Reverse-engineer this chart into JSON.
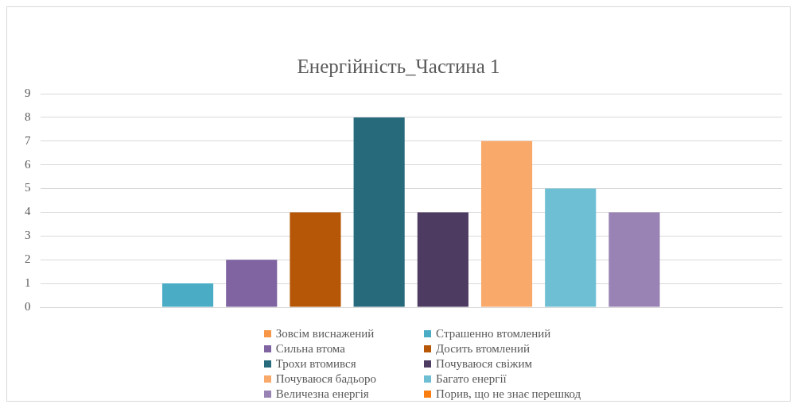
{
  "chart_data": {
    "type": "bar",
    "title": "Енергійність_Частина 1",
    "categories": [
      null
    ],
    "series": [
      {
        "name": "Зовсім виснажений",
        "color": "#f79646",
        "values": [
          0
        ]
      },
      {
        "name": "Страшенно втомлений",
        "color": "#4bacc6",
        "values": [
          1
        ]
      },
      {
        "name": "Сильна втома",
        "color": "#8064a2",
        "values": [
          2
        ]
      },
      {
        "name": "Досить втомлений",
        "color": "#b65708",
        "values": [
          4
        ]
      },
      {
        "name": "Трохи втомився",
        "color": "#276a7c",
        "values": [
          8
        ]
      },
      {
        "name": "Почуваюся свіжим",
        "color": "#4d3b62",
        "values": [
          4
        ]
      },
      {
        "name": "Почуваюся бадьоро",
        "color": "#f9a96a",
        "values": [
          7
        ]
      },
      {
        "name": "Багато енергії",
        "color": "#6fbfd4",
        "values": [
          5
        ]
      },
      {
        "name": "Величезна енергія",
        "color": "#9983b5",
        "values": [
          4
        ]
      },
      {
        "name": "Порив, що не знає перешкод",
        "color": "#f97d10",
        "values": [
          0
        ]
      }
    ],
    "ylim": [
      0,
      9
    ],
    "yticks": [
      0,
      1,
      2,
      3,
      4,
      5,
      6,
      7,
      8,
      9
    ],
    "grid": "y",
    "legend": "bottom"
  }
}
